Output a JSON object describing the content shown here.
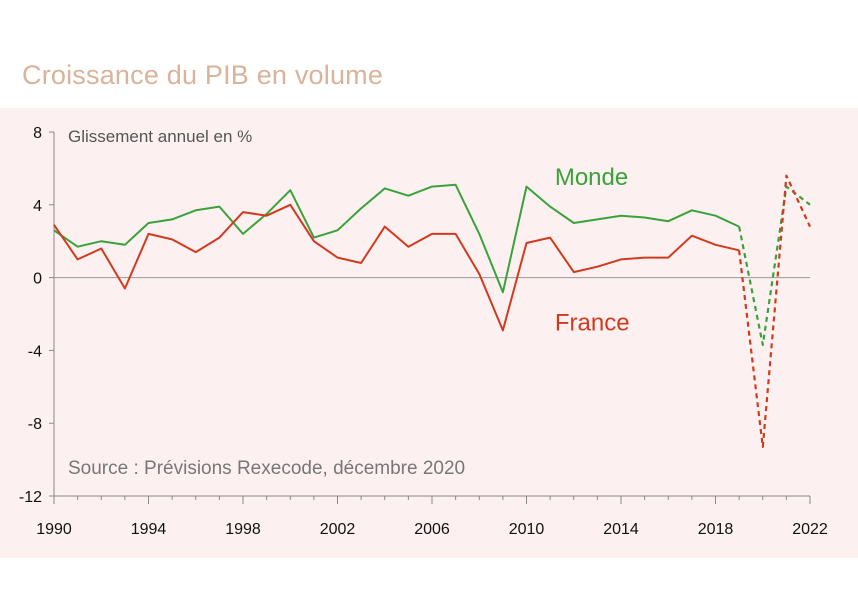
{
  "title": "Croissance du PIB en volume",
  "chart_data": {
    "type": "line",
    "ylabel": "Glissement annuel en %",
    "source": "Source : Prévisions Rexecode, décembre 2020",
    "ylim": [
      -12,
      8
    ],
    "xlim": [
      1990,
      2022
    ],
    "y_ticks": [
      8,
      4,
      0,
      -4,
      -8,
      -12
    ],
    "x_ticks": [
      1990,
      1994,
      1998,
      2002,
      2006,
      2010,
      2014,
      2018,
      2022
    ],
    "zero_line": true,
    "series": [
      {
        "name": "Monde",
        "color": "#3aa23a",
        "x": [
          1990,
          1991,
          1992,
          1993,
          1994,
          1995,
          1996,
          1997,
          1998,
          1999,
          2000,
          2001,
          2002,
          2003,
          2004,
          2005,
          2006,
          2007,
          2008,
          2009,
          2010,
          2011,
          2012,
          2013,
          2014,
          2015,
          2016,
          2017,
          2018,
          2019
        ],
        "values": [
          2.6,
          1.7,
          2.0,
          1.8,
          3.0,
          3.2,
          3.7,
          3.9,
          2.4,
          3.5,
          4.8,
          2.2,
          2.6,
          3.8,
          4.9,
          4.5,
          5.0,
          5.1,
          2.4,
          -0.8,
          5.0,
          3.9,
          3.0,
          3.2,
          3.4,
          3.3,
          3.1,
          3.7,
          3.4,
          2.8
        ],
        "forecast_x": [
          2019,
          2020,
          2021,
          2022
        ],
        "forecast_values": [
          2.8,
          -3.7,
          5.0,
          4.0
        ]
      },
      {
        "name": "France",
        "color": "#d13a1e",
        "x": [
          1990,
          1991,
          1992,
          1993,
          1994,
          1995,
          1996,
          1997,
          1998,
          1999,
          2000,
          2001,
          2002,
          2003,
          2004,
          2005,
          2006,
          2007,
          2008,
          2009,
          2010,
          2011,
          2012,
          2013,
          2014,
          2015,
          2016,
          2017,
          2018,
          2019
        ],
        "values": [
          2.9,
          1.0,
          1.6,
          -0.6,
          2.4,
          2.1,
          1.4,
          2.2,
          3.6,
          3.4,
          4.0,
          2.0,
          1.1,
          0.8,
          2.8,
          1.7,
          2.4,
          2.4,
          0.2,
          -2.9,
          1.9,
          2.2,
          0.3,
          0.6,
          1.0,
          1.1,
          1.1,
          2.3,
          1.8,
          1.5
        ],
        "forecast_x": [
          2019,
          2020,
          2021,
          2022
        ],
        "forecast_values": [
          1.5,
          -9.3,
          5.6,
          2.8
        ]
      }
    ]
  }
}
